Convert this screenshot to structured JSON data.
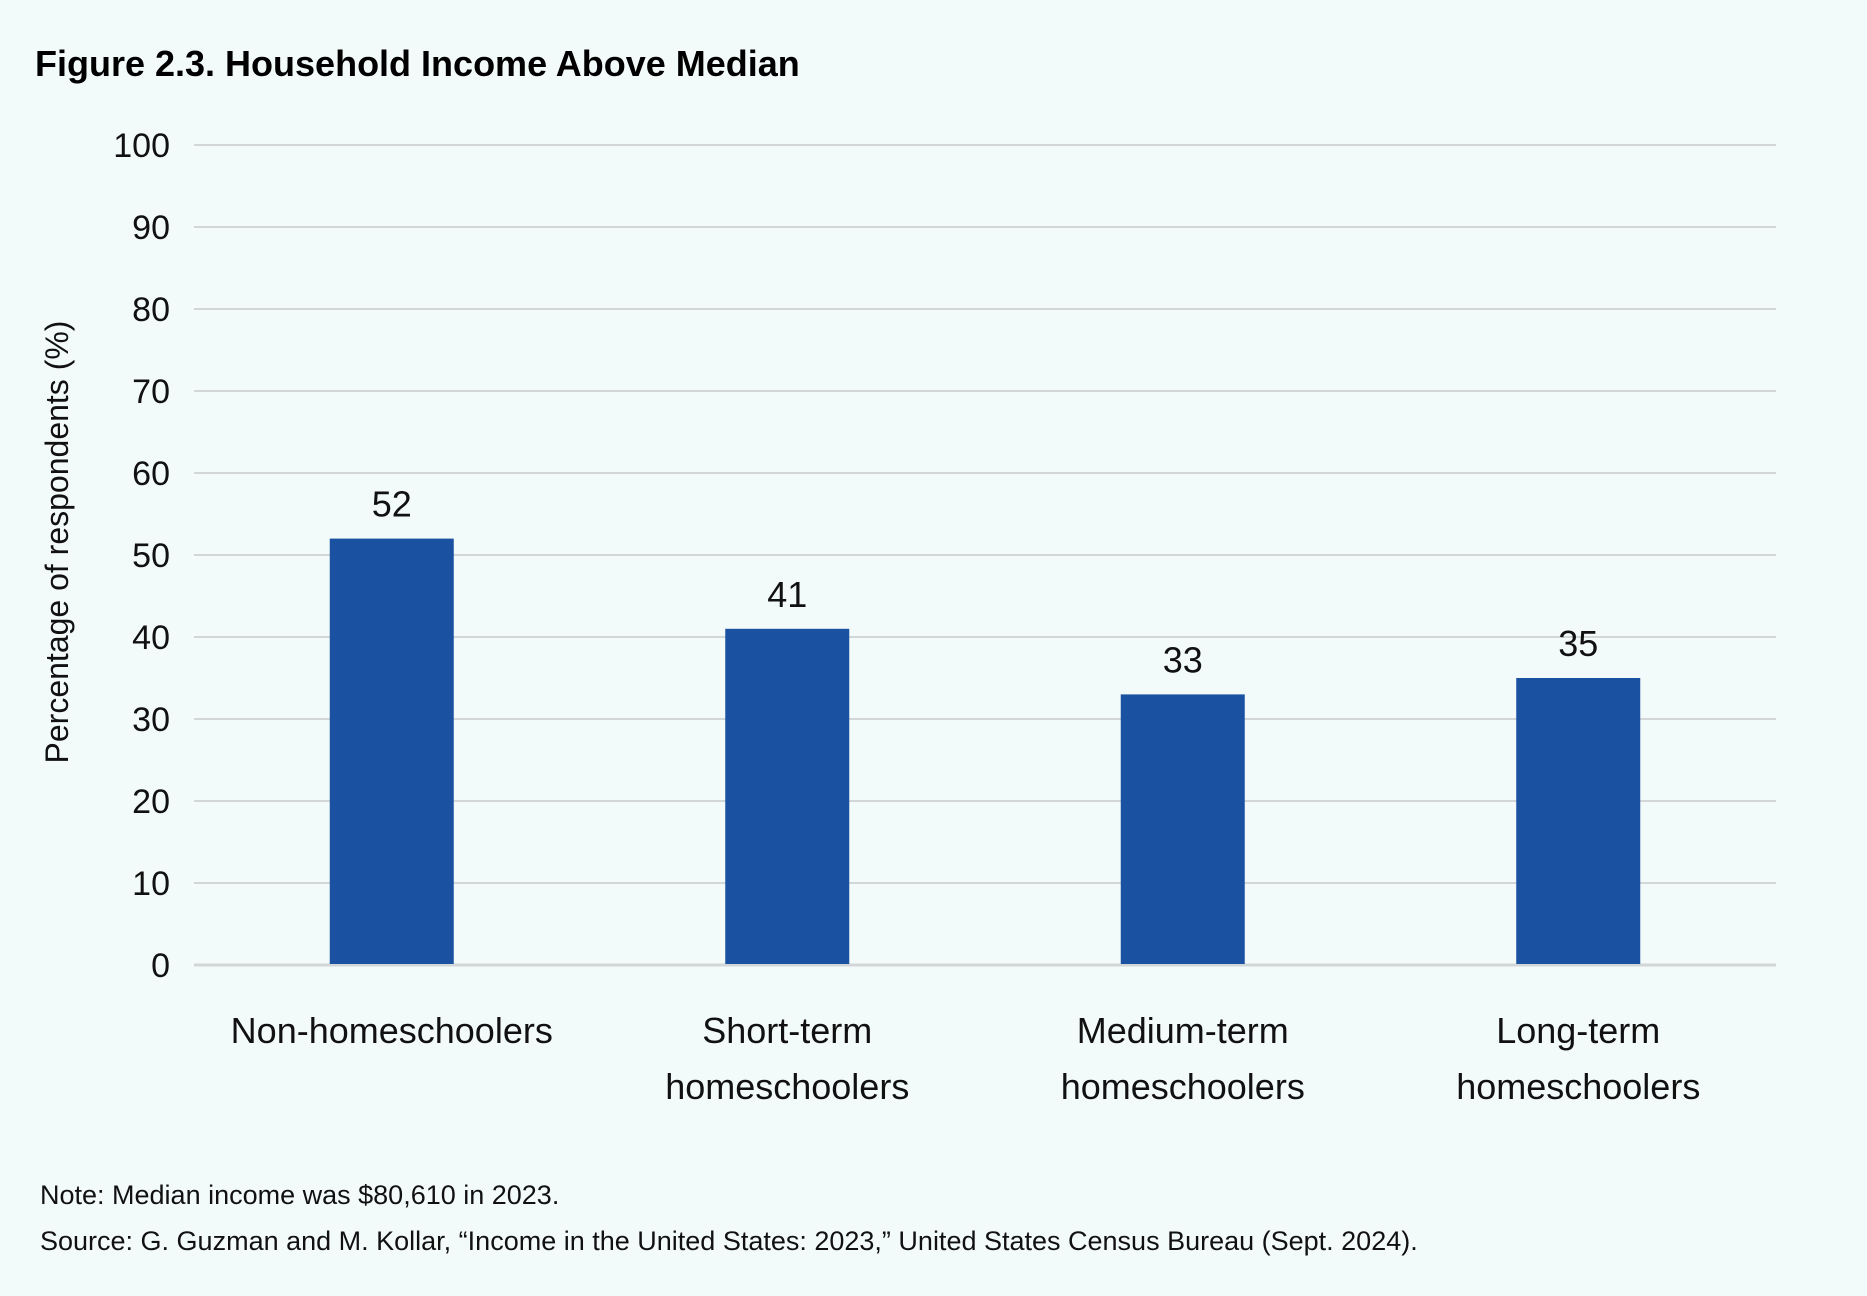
{
  "chart_data": {
    "type": "bar",
    "title": "Figure 2.3. Household Income Above Median",
    "xlabel": "",
    "ylabel": "Percentage of respondents (%)",
    "ylim": [
      0,
      100
    ],
    "yticks": [
      0,
      10,
      20,
      30,
      40,
      50,
      60,
      70,
      80,
      90,
      100
    ],
    "grid": true,
    "categories": [
      [
        "Non-homeschoolers"
      ],
      [
        "Short-term",
        "homeschoolers"
      ],
      [
        "Medium-term",
        "homeschoolers"
      ],
      [
        "Long-term",
        "homeschoolers"
      ]
    ],
    "values": [
      52,
      41,
      33,
      35
    ],
    "data_labels": [
      "52",
      "41",
      "33",
      "35"
    ],
    "bar_color": "#1b51a1",
    "grid_color": "#d3d6d8",
    "background_color": "#f3fbfa"
  },
  "notes": {
    "note": "Note: Median income was $80,610 in 2023.",
    "source": "Source: G. Guzman and M. Kollar, “Income in the United States: 2023,” United States Census Bureau (Sept. 2024)."
  }
}
